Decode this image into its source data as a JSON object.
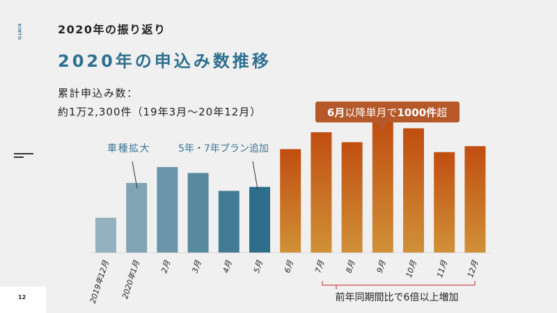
{
  "logo": "KINTO",
  "header": {
    "section": "2020年の振り返り",
    "title": "2020年の申込み数推移"
  },
  "summary": {
    "line1": "累計申込み数：",
    "line2": "約1万2,300件（19年3月～20年12月）"
  },
  "page_number": "12",
  "chart_data": {
    "type": "bar",
    "title": "",
    "xlabel": "",
    "ylabel": "",
    "categories": [
      "2019年12月",
      "2020年1月",
      "2月",
      "3月",
      "4月",
      "5月",
      "6月",
      "7月",
      "8月",
      "9月",
      "10月",
      "11月",
      "12月"
    ],
    "values": [
      350,
      700,
      860,
      800,
      620,
      660,
      1040,
      1210,
      1110,
      1310,
      1250,
      1010,
      1070
    ],
    "ylim": [
      0,
      1400
    ],
    "grid": false,
    "colors": {
      "blue_light": "#93b1bf",
      "blue_dark": "#2f6e8a",
      "orange_top": "#c04e10",
      "orange_bottom": "#d09038",
      "callout": "#b5582a",
      "bracket": "#d04848"
    },
    "annotations": [
      {
        "text": "車種拡大",
        "target": "2020年1月"
      },
      {
        "text": "5年・7年プラン追加",
        "target": "5月"
      }
    ],
    "callout": {
      "bold1": "6月",
      "mid": "以降単月で",
      "bold2": "1000件",
      "end": "超"
    },
    "bracket_label": "前年同期間比で6倍以上増加"
  }
}
